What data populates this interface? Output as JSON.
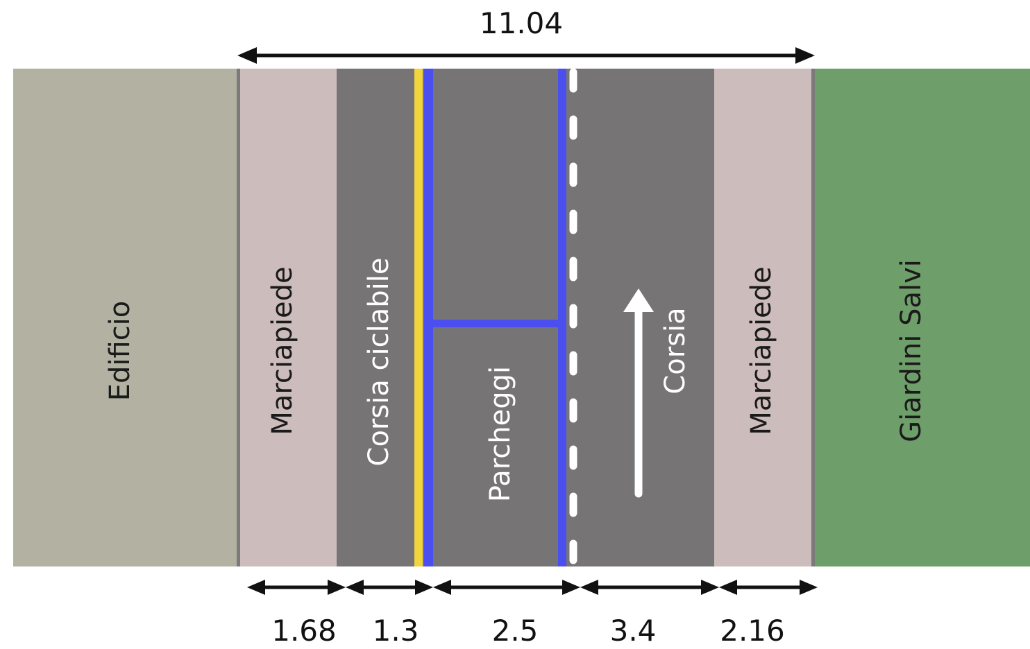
{
  "overall_width": "11.04",
  "zones": [
    {
      "key": "edificio",
      "label": "Edificio",
      "color": "#b3b2a2",
      "text_color": "#1a1a1a"
    },
    {
      "key": "marciapiede-left",
      "label": "Marciapiede",
      "color": "#cdbcbc",
      "text_color": "#1a1a1a"
    },
    {
      "key": "corsia-ciclabile",
      "label": "Corsia ciclabile",
      "color": "#767475",
      "text_color": "#ffffff"
    },
    {
      "key": "parcheggi",
      "label": "Parcheggi",
      "color": "#767475",
      "text_color": "#ffffff"
    },
    {
      "key": "corsia",
      "label": "Corsia",
      "color": "#767475",
      "text_color": "#ffffff"
    },
    {
      "key": "marciapiede-right",
      "label": "Marciapiede",
      "color": "#cdbcbc",
      "text_color": "#1a1a1a"
    },
    {
      "key": "giardini-salvi",
      "label": "Giardini Salvi",
      "color": "#6e9e69",
      "text_color": "#1a1a1a"
    }
  ],
  "segment_widths": [
    "1.68",
    "1.3",
    "2.5",
    "3.4",
    "2.16"
  ],
  "colors": {
    "curb": "#7a7a7a",
    "bike_line": "#f2d43c",
    "parking_line": "#4c4ff0",
    "lane_dash": "#ffffff",
    "arrow": "#ffffff",
    "dimension": "#111111"
  }
}
